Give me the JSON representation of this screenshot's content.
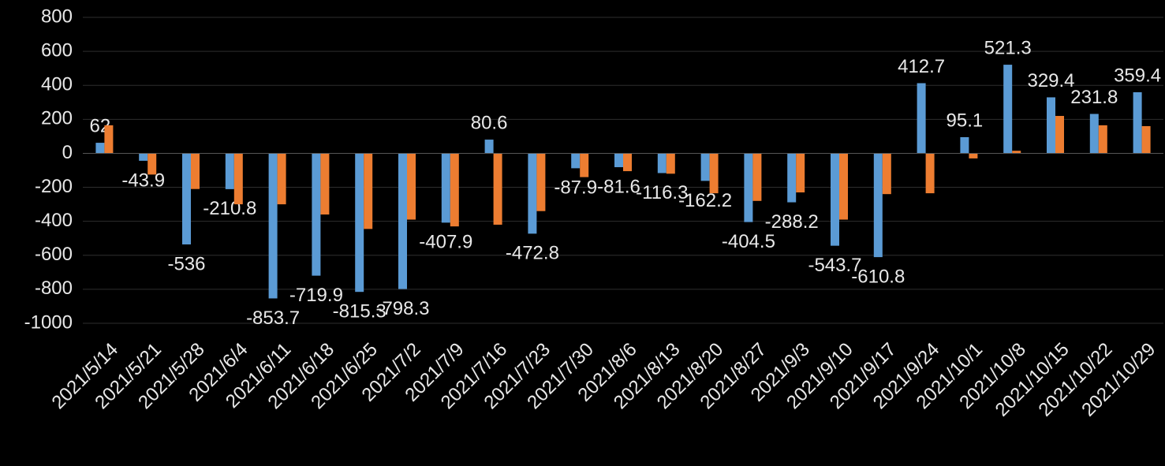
{
  "chart_data": {
    "type": "bar",
    "categories": [
      "2021/5/14",
      "2021/5/21",
      "2021/5/28",
      "2021/6/4",
      "2021/6/11",
      "2021/6/18",
      "2021/6/25",
      "2021/7/2",
      "2021/7/9",
      "2021/7/16",
      "2021/7/23",
      "2021/7/30",
      "2021/8/6",
      "2021/8/13",
      "2021/8/20",
      "2021/8/27",
      "2021/9/3",
      "2021/9/10",
      "2021/9/17",
      "2021/9/24",
      "2021/10/1",
      "2021/10/8",
      "2021/10/15",
      "2021/10/22",
      "2021/10/29"
    ],
    "series": [
      {
        "color": "#5b9bd5",
        "values": [
          62,
          -43.9,
          -536,
          -210.8,
          -853.7,
          -719.9,
          -815.3,
          -798.3,
          -407.9,
          80.6,
          -472.8,
          -87.9,
          -81.6,
          -116.3,
          -162.2,
          -404.5,
          -288.2,
          -543.7,
          -610.8,
          412.7,
          95.1,
          521.3,
          329.4,
          231.8,
          359.4
        ],
        "data_labels": true
      },
      {
        "color": "#ed7d31",
        "values": [
          165,
          -125,
          -210,
          -300,
          -300,
          -360,
          -445,
          -390,
          -430,
          -420,
          -340,
          -140,
          -105,
          -120,
          -235,
          -280,
          -230,
          -390,
          -240,
          -235,
          -30,
          15,
          220,
          165,
          160
        ],
        "data_labels": false
      }
    ],
    "ylim": [
      -1000,
      800
    ],
    "yticks": [
      800,
      600,
      400,
      200,
      0,
      -200,
      -400,
      -600,
      -800,
      -1000
    ],
    "grid": true,
    "grid_color": "#2e2e2e"
  }
}
